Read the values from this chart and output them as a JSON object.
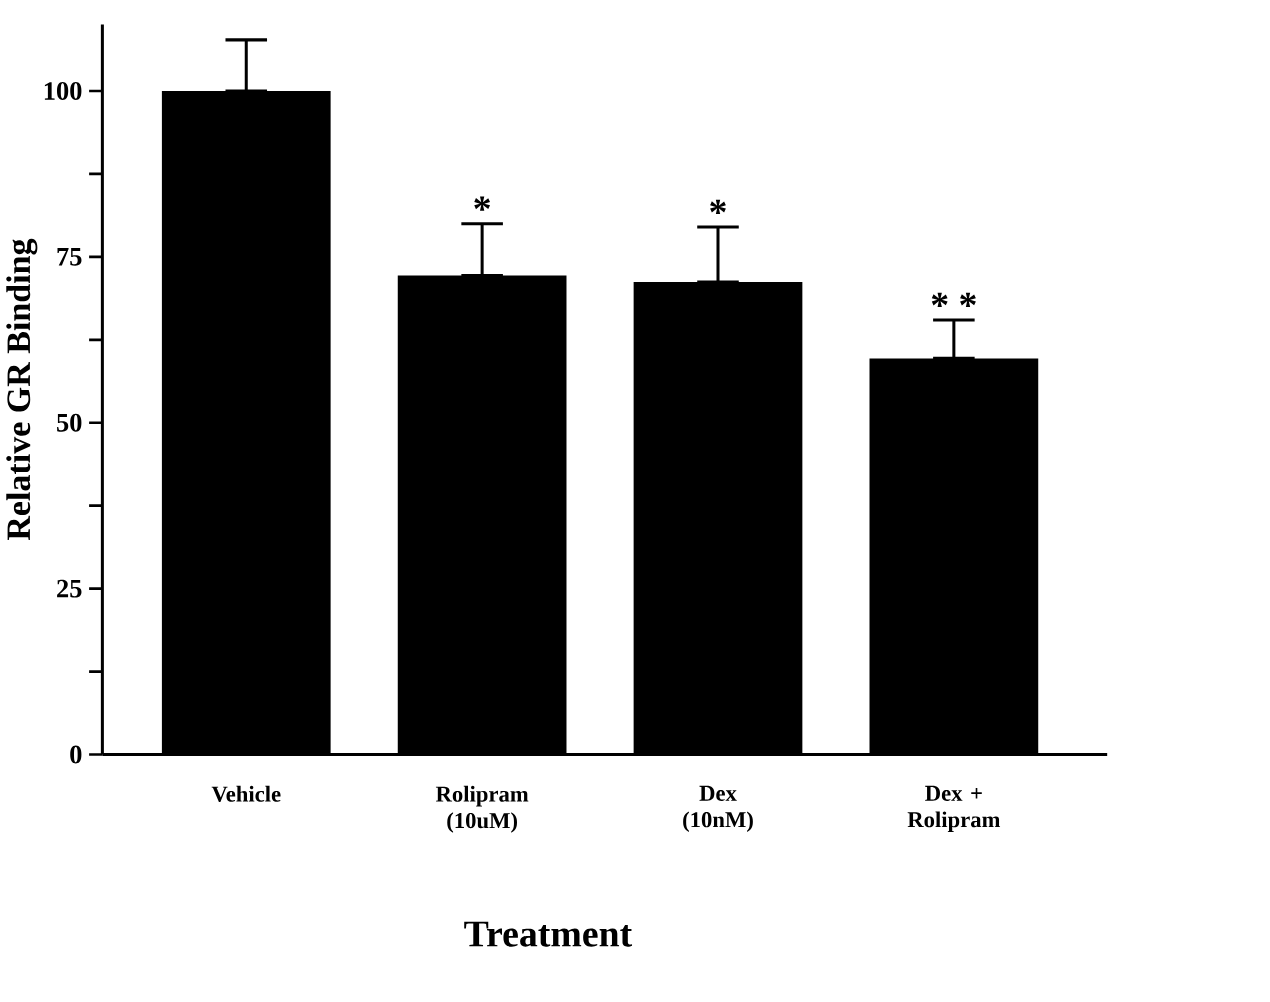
{
  "chart_data": {
    "type": "bar",
    "xlabel": "Treatment",
    "ylabel": "Relative GR Binding",
    "categories": [
      "Vehicle",
      "Rolipram (10uM)",
      "Dex (10nM)",
      "Dex + Rolipram"
    ],
    "values": [
      100,
      72.2,
      71.2,
      59.7
    ],
    "errors": [
      [
        100,
        107.7
      ],
      [
        72.2,
        80
      ],
      [
        71.2,
        79.5
      ],
      [
        59.7,
        65.5
      ]
    ],
    "color": "#000000",
    "ylim": [
      0,
      110
    ],
    "yticks": [
      0,
      {
        "value": 12.5,
        "label": null
      },
      25,
      {
        "value": 37.5,
        "label": null
      },
      50,
      {
        "value": 62.5,
        "label": null
      },
      75,
      {
        "value": 87.5,
        "label": null
      },
      100
    ],
    "annotations": [
      "*",
      "*",
      "* *"
    ]
  }
}
